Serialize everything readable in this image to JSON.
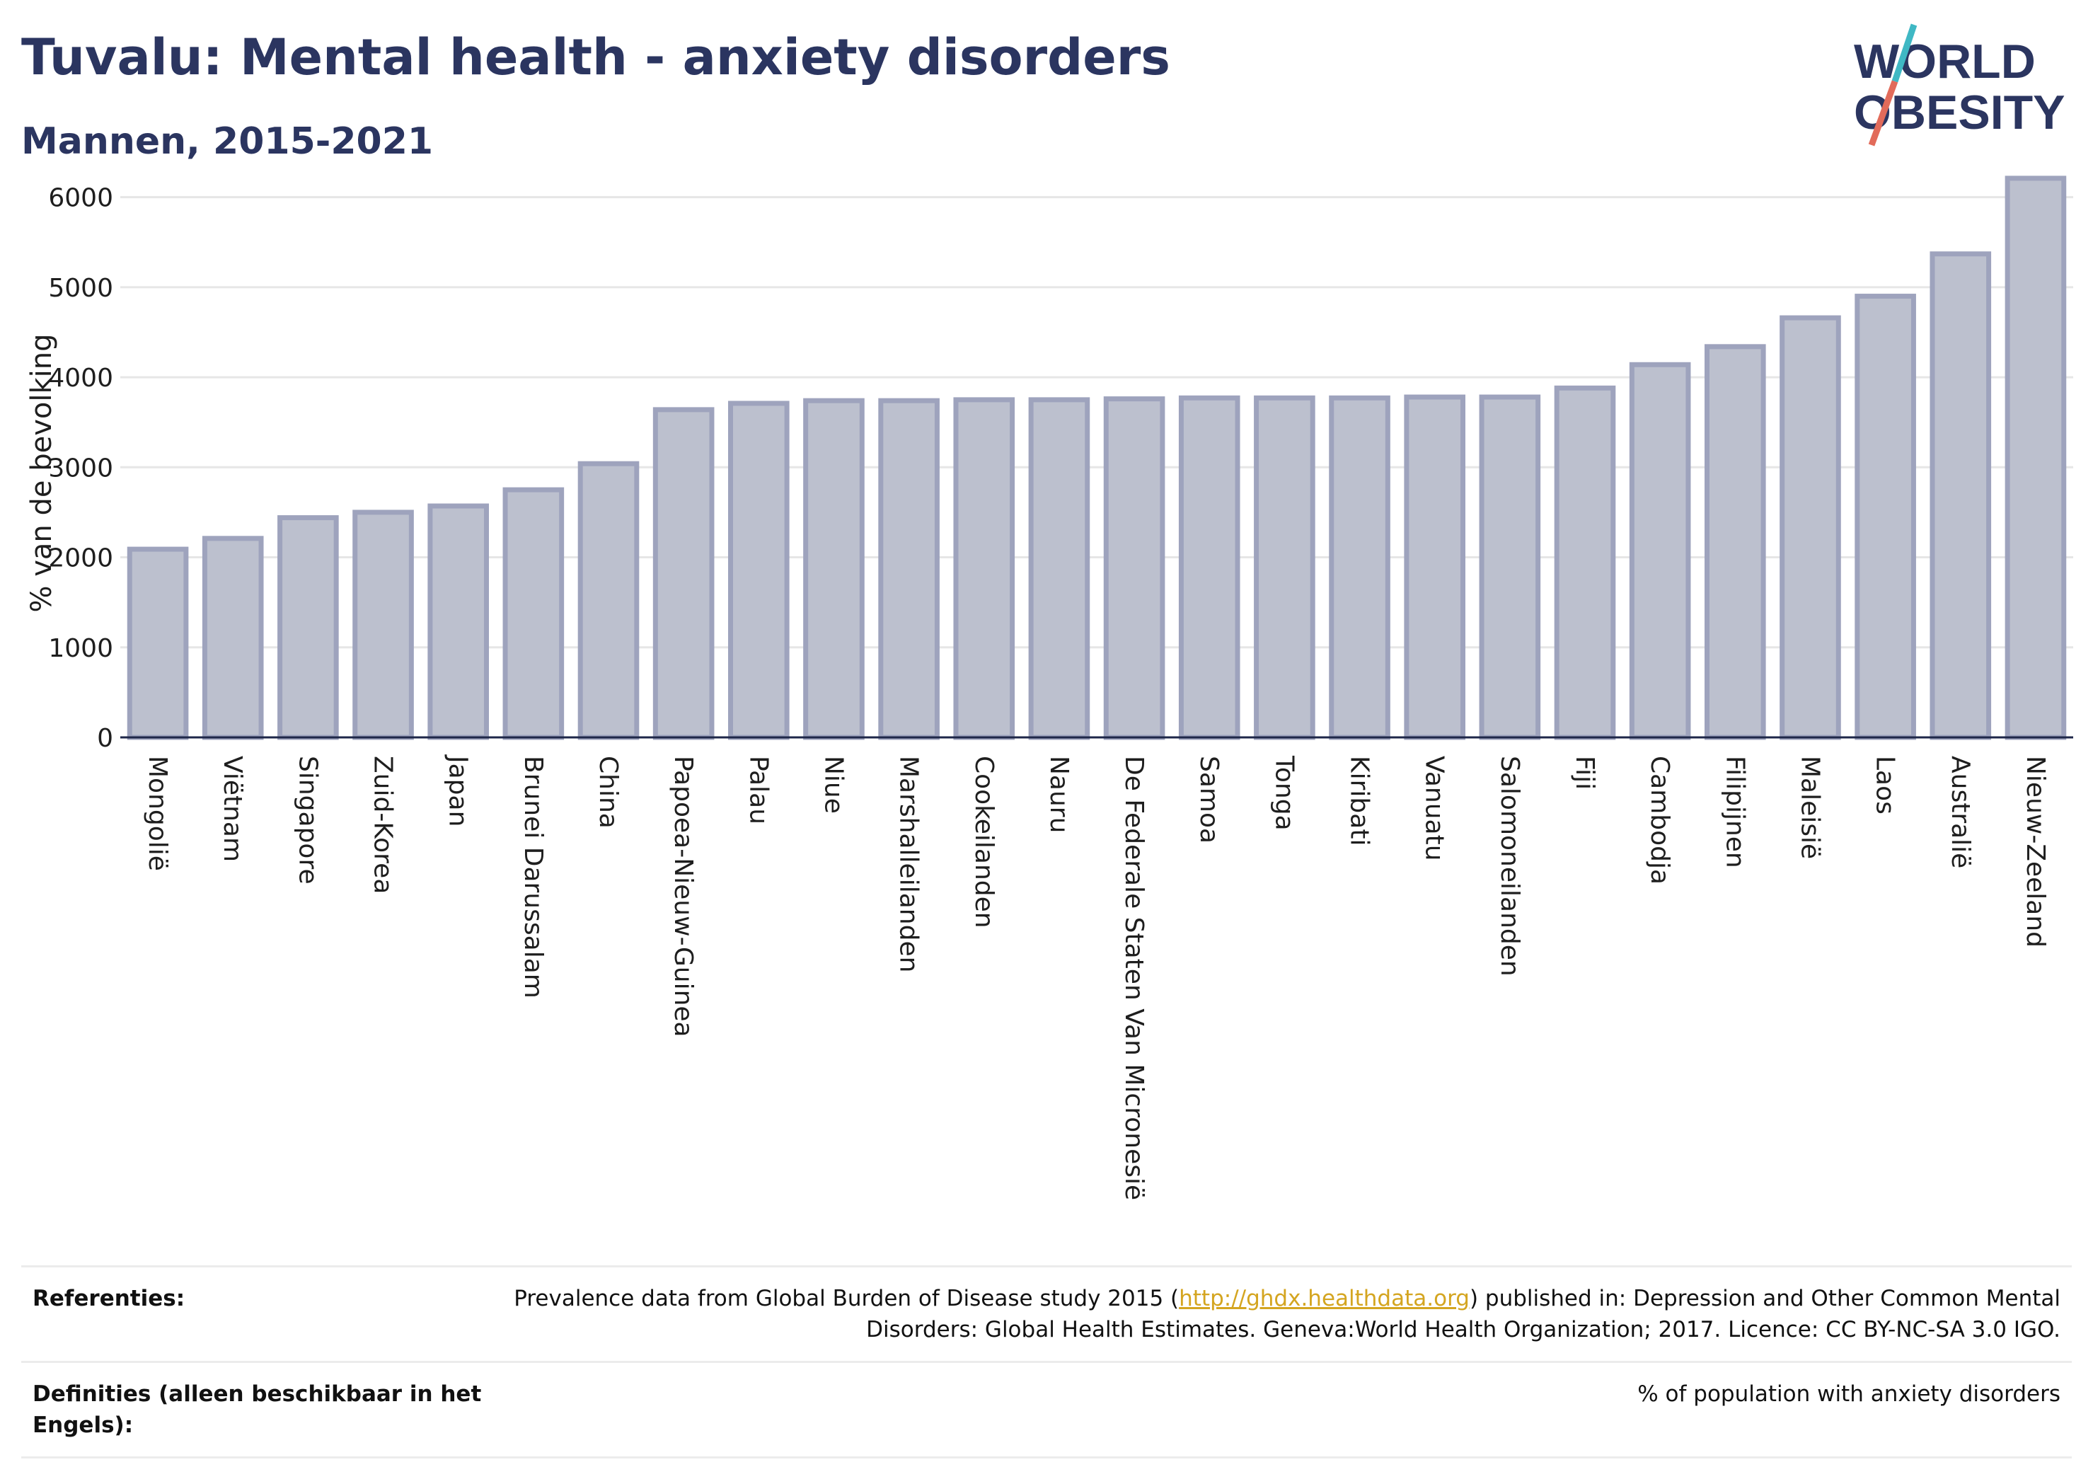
{
  "header": {
    "title": "Tuvalu: Mental health - anxiety disorders",
    "subtitle": "Mannen, 2015-2021"
  },
  "logo": {
    "line1": "WORLD",
    "line2": "OBESITY",
    "slash_colors": [
      "#3fb8c4",
      "#e26b5a"
    ],
    "text_color": "#2b3560"
  },
  "chart_data": {
    "type": "bar",
    "title": "",
    "xlabel": "",
    "ylabel": "% van de bevolking",
    "ylim": [
      0,
      6500
    ],
    "yticks": [
      0,
      1000,
      2000,
      3000,
      4000,
      5000,
      6000
    ],
    "grid": true,
    "bar_color": "#bcc0ce",
    "bar_edge_color": "#9ea3bd",
    "categories": [
      "Mongolië",
      "Viëtnam",
      "Singapore",
      "Zuid-Korea",
      "Japan",
      "Brunei Darussalam",
      "China",
      "Papoea-Nieuw-Guinea",
      "Palau",
      "Niue",
      "Marshalleilanden",
      "Cookeilanden",
      "Nauru",
      "De Federale Staten Van Micronesië",
      "Samoa",
      "Tonga",
      "Kiribati",
      "Vanuatu",
      "Salomoneilanden",
      "Fiji",
      "Cambodja",
      "Filipijnen",
      "Maleisië",
      "Laos",
      "Australië",
      "Nieuw-Zeeland"
    ],
    "values": [
      2090,
      2210,
      2440,
      2500,
      2570,
      2750,
      3040,
      3640,
      3710,
      3740,
      3740,
      3750,
      3750,
      3760,
      3770,
      3770,
      3770,
      3780,
      3780,
      3880,
      4140,
      4340,
      4660,
      4900,
      5370,
      6210
    ]
  },
  "footer": {
    "references_label": "Referenties:",
    "references_before": "Prevalence data from Global Burden of Disease study 2015 (",
    "references_link": "http://ghdx.healthdata.org",
    "references_after": ") published in: Depression and Other Common Mental Disorders: Global Health Estimates. Geneva:World Health Organization; 2017. Licence: CC BY-NC-SA 3.0 IGO.",
    "definitions_label": "Definities (alleen beschikbaar in het Engels):",
    "definitions_value": "% of population with anxiety disorders"
  }
}
